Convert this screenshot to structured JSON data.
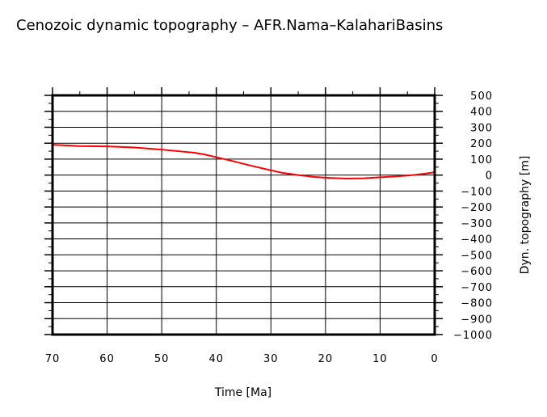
{
  "chart_data": {
    "type": "line",
    "title": "Cenozoic dynamic topography – AFR.Nama–KalahariBasins",
    "xlabel": "Time [Ma]",
    "ylabel": "Dyn. topography [m]",
    "xlim": [
      70,
      0
    ],
    "ylim": [
      -1000,
      500
    ],
    "xticks": [
      70,
      60,
      50,
      40,
      30,
      20,
      10,
      0
    ],
    "yticks": [
      500,
      400,
      300,
      200,
      100,
      0,
      -100,
      -200,
      -300,
      -400,
      -500,
      -600,
      -700,
      -800,
      -900,
      -1000
    ],
    "ytick_labels": [
      "500",
      "400",
      "300",
      "200",
      "100",
      "0",
      "−100",
      "−200",
      "−300",
      "−400",
      "−500",
      "−600",
      "−700",
      "−800",
      "−900",
      "−1000"
    ],
    "grid": true,
    "line_color": "#ff0000",
    "series": [
      {
        "x": [
          70,
          65,
          60,
          55,
          50,
          47,
          44,
          42,
          40,
          37,
          34,
          31,
          28,
          25,
          22,
          19,
          16,
          13,
          10,
          7,
          4,
          2,
          0
        ],
        "y": [
          190,
          182,
          180,
          173,
          160,
          150,
          140,
          128,
          112,
          88,
          62,
          38,
          15,
          0,
          -12,
          -18,
          -22,
          -20,
          -14,
          -8,
          0,
          8,
          18
        ]
      }
    ]
  }
}
